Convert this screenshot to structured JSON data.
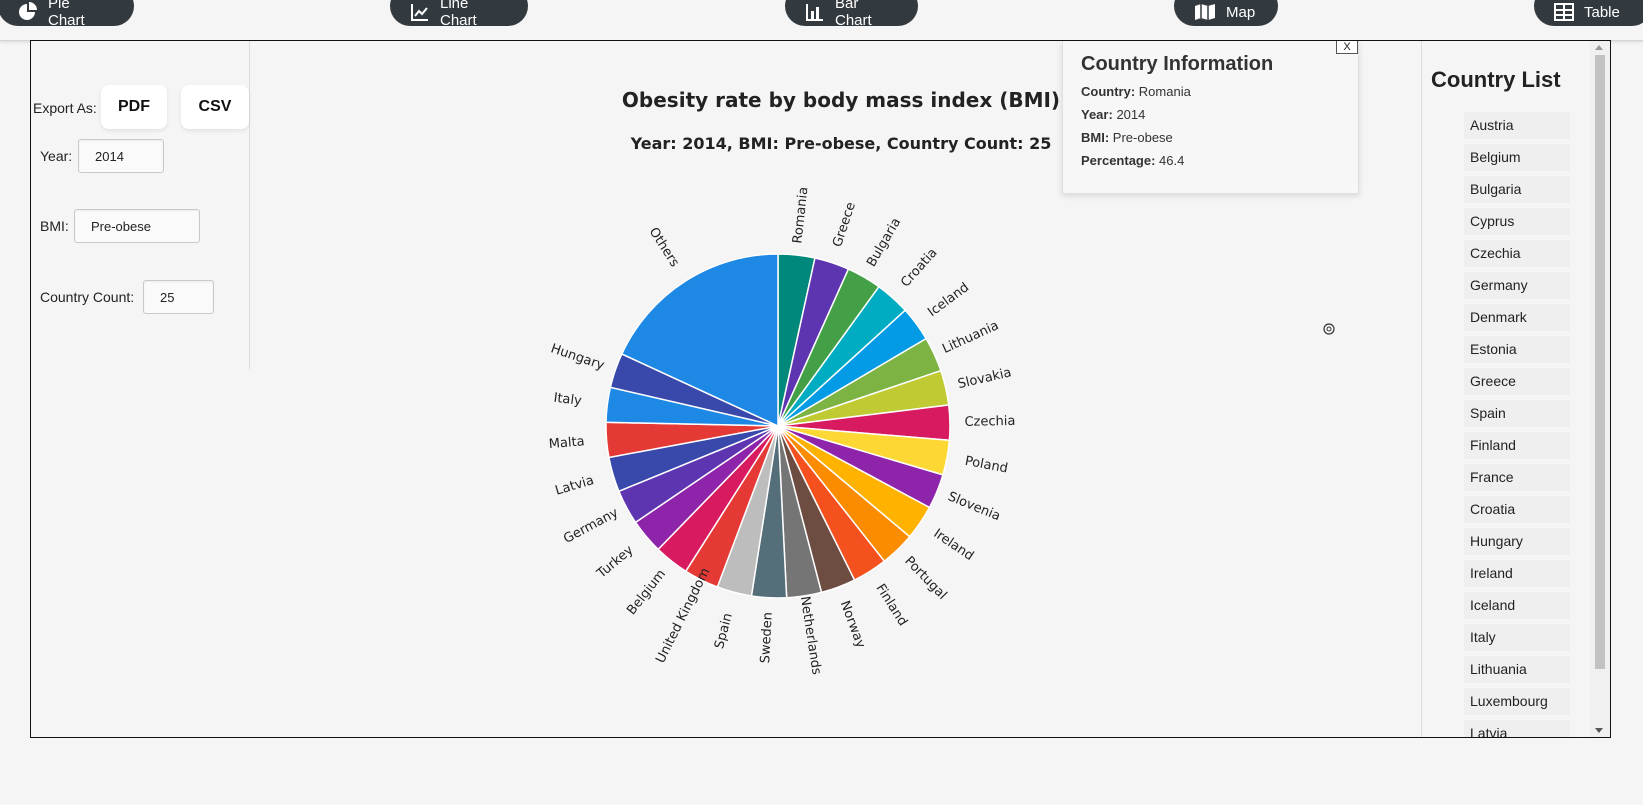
{
  "nav": {
    "items": [
      {
        "label": "Pie Chart",
        "icon": "pie-chart-icon"
      },
      {
        "label": "Line Chart",
        "icon": "line-chart-icon"
      },
      {
        "label": "Bar Chart",
        "icon": "bar-chart-icon"
      },
      {
        "label": "Map",
        "icon": "map-icon"
      },
      {
        "label": "Table",
        "icon": "table-icon"
      }
    ]
  },
  "controls": {
    "export_label": "Export As:",
    "pdf_label": "PDF",
    "csv_label": "CSV",
    "year_label": "Year:",
    "year_value": "2014",
    "bmi_label": "BMI:",
    "bmi_value": "Pre-obese",
    "count_label": "Country Count:",
    "count_value": "25"
  },
  "info": {
    "title": "Country Information",
    "close_label": "X",
    "country_label": "Country:",
    "country_value": "Romania",
    "year_label": "Year:",
    "year_value": "2014",
    "bmi_label": "BMI:",
    "bmi_value": "Pre-obese",
    "pct_label": "Percentage:",
    "pct_value": "46.4"
  },
  "country_list": {
    "title": "Country List",
    "items": [
      "Austria",
      "Belgium",
      "Bulgaria",
      "Cyprus",
      "Czechia",
      "Germany",
      "Denmark",
      "Estonia",
      "Greece",
      "Spain",
      "Finland",
      "France",
      "Croatia",
      "Hungary",
      "Ireland",
      "Iceland",
      "Italy",
      "Lithuania",
      "Luxembourg",
      "Latvia"
    ]
  },
  "chart_data": {
    "type": "pie",
    "title": "Obesity rate by body mass index (BMI)",
    "subtitle": "Year: 2014, BMI: Pre-obese, Country Count: 25",
    "slices": [
      {
        "label": "Romania",
        "value": 46.4,
        "color": "#00897b"
      },
      {
        "label": "Greece",
        "value": 44.0,
        "color": "#5e35b1"
      },
      {
        "label": "Bulgaria",
        "value": 44.0,
        "color": "#43a047"
      },
      {
        "label": "Croatia",
        "value": 44.0,
        "color": "#00acc1"
      },
      {
        "label": "Iceland",
        "value": 44.0,
        "color": "#039be5"
      },
      {
        "label": "Lithuania",
        "value": 44.0,
        "color": "#7cb342"
      },
      {
        "label": "Slovakia",
        "value": 44.0,
        "color": "#c0ca33"
      },
      {
        "label": "Czechia",
        "value": 44.0,
        "color": "#d81b60"
      },
      {
        "label": "Poland",
        "value": 44.0,
        "color": "#fdd835"
      },
      {
        "label": "Slovenia",
        "value": 44.0,
        "color": "#8e24aa"
      },
      {
        "label": "Ireland",
        "value": 44.0,
        "color": "#ffb300"
      },
      {
        "label": "Portugal",
        "value": 44.0,
        "color": "#fb8c00"
      },
      {
        "label": "Finland",
        "value": 44.0,
        "color": "#f4511e"
      },
      {
        "label": "Norway",
        "value": 44.0,
        "color": "#6d4c41"
      },
      {
        "label": "Netherlands",
        "value": 44.0,
        "color": "#757575"
      },
      {
        "label": "Sweden",
        "value": 44.0,
        "color": "#546e7a"
      },
      {
        "label": "Spain",
        "value": 44.0,
        "color": "#bdbdbd"
      },
      {
        "label": "United Kingdom",
        "value": 44.0,
        "color": "#e53935"
      },
      {
        "label": "Belgium",
        "value": 44.0,
        "color": "#d81b60"
      },
      {
        "label": "Turkey",
        "value": 44.0,
        "color": "#8e24aa"
      },
      {
        "label": "Germany",
        "value": 44.0,
        "color": "#5e35b1"
      },
      {
        "label": "Latvia",
        "value": 44.0,
        "color": "#3949ab"
      },
      {
        "label": "Malta",
        "value": 44.0,
        "color": "#e53935"
      },
      {
        "label": "Italy",
        "value": 44.0,
        "color": "#1e88e5"
      },
      {
        "label": "Hungary",
        "value": 44.0,
        "color": "#3949ab"
      },
      {
        "label": "Others",
        "value": 244.0,
        "color": "#1e88e5"
      }
    ]
  }
}
